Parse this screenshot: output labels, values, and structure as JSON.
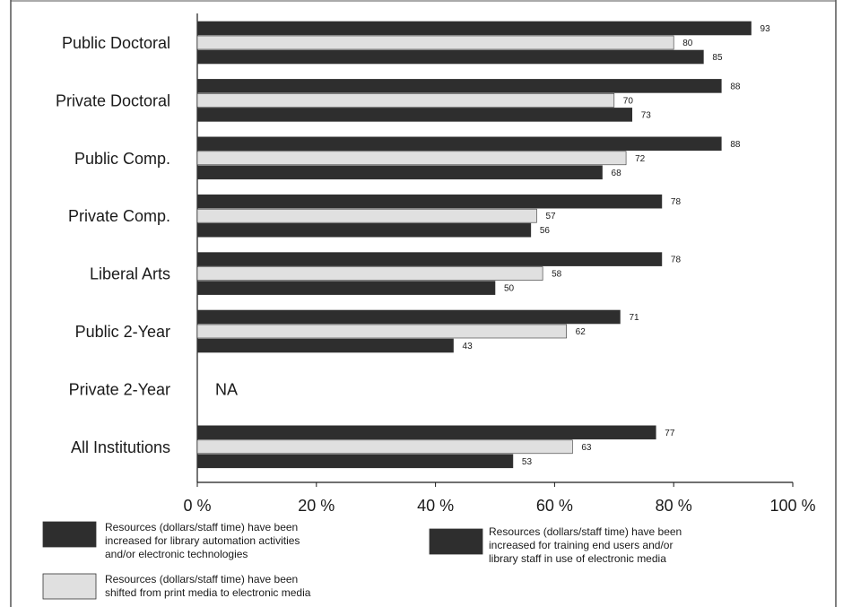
{
  "colors": {
    "dark_bar": "#2e2e2e",
    "light_bar": "#e0e0e0",
    "frame": "#555555",
    "text": "#1a1a1a"
  },
  "chart_data": {
    "type": "bar",
    "orientation": "horizontal",
    "categories": [
      "Public Doctoral",
      "Private Doctoral",
      "Public Comp.",
      "Private Comp.",
      "Liberal Arts",
      "Public 2-Year",
      "Private 2-Year",
      "All Institutions"
    ],
    "series": [
      {
        "name": "Resources (dollars/staff time) have been increased for library automation activities and/or electronic technologies",
        "color": "#2e2e2e",
        "values": [
          93,
          88,
          88,
          78,
          78,
          71,
          null,
          77
        ]
      },
      {
        "name": "Resources (dollars/staff time) have been shifted from print media to electronic media",
        "color": "#e0e0e0",
        "values": [
          80,
          70,
          72,
          57,
          58,
          62,
          null,
          63
        ]
      },
      {
        "name": "Resources (dollars/staff time) have been increased for training end users and/or library staff in use of electronic media",
        "color": "#2e2e2e",
        "values": [
          85,
          73,
          68,
          56,
          50,
          43,
          null,
          53
        ]
      }
    ],
    "missing_label": "NA",
    "xlim": [
      0,
      100
    ],
    "xticks": [
      0,
      20,
      40,
      60,
      80,
      100
    ],
    "xtick_labels": [
      "0 %",
      "20 %",
      "40 %",
      "60 %",
      "80 %",
      "100 %"
    ],
    "legend": {
      "placement": "bottom",
      "entries": [
        {
          "lines": [
            "Resources (dollars/staff time) have been",
            "increased for library automation activities",
            "and/or electronic technologies"
          ],
          "color": "#2e2e2e"
        },
        {
          "lines": [
            "Resources (dollars/staff time) have been",
            "shifted from print media to electronic media"
          ],
          "color": "#e0e0e0"
        },
        {
          "lines": [
            "Resources (dollars/staff time) have been",
            "increased for training end users and/or",
            "library staff in use of electronic media"
          ],
          "color": "#2e2e2e"
        }
      ]
    }
  }
}
